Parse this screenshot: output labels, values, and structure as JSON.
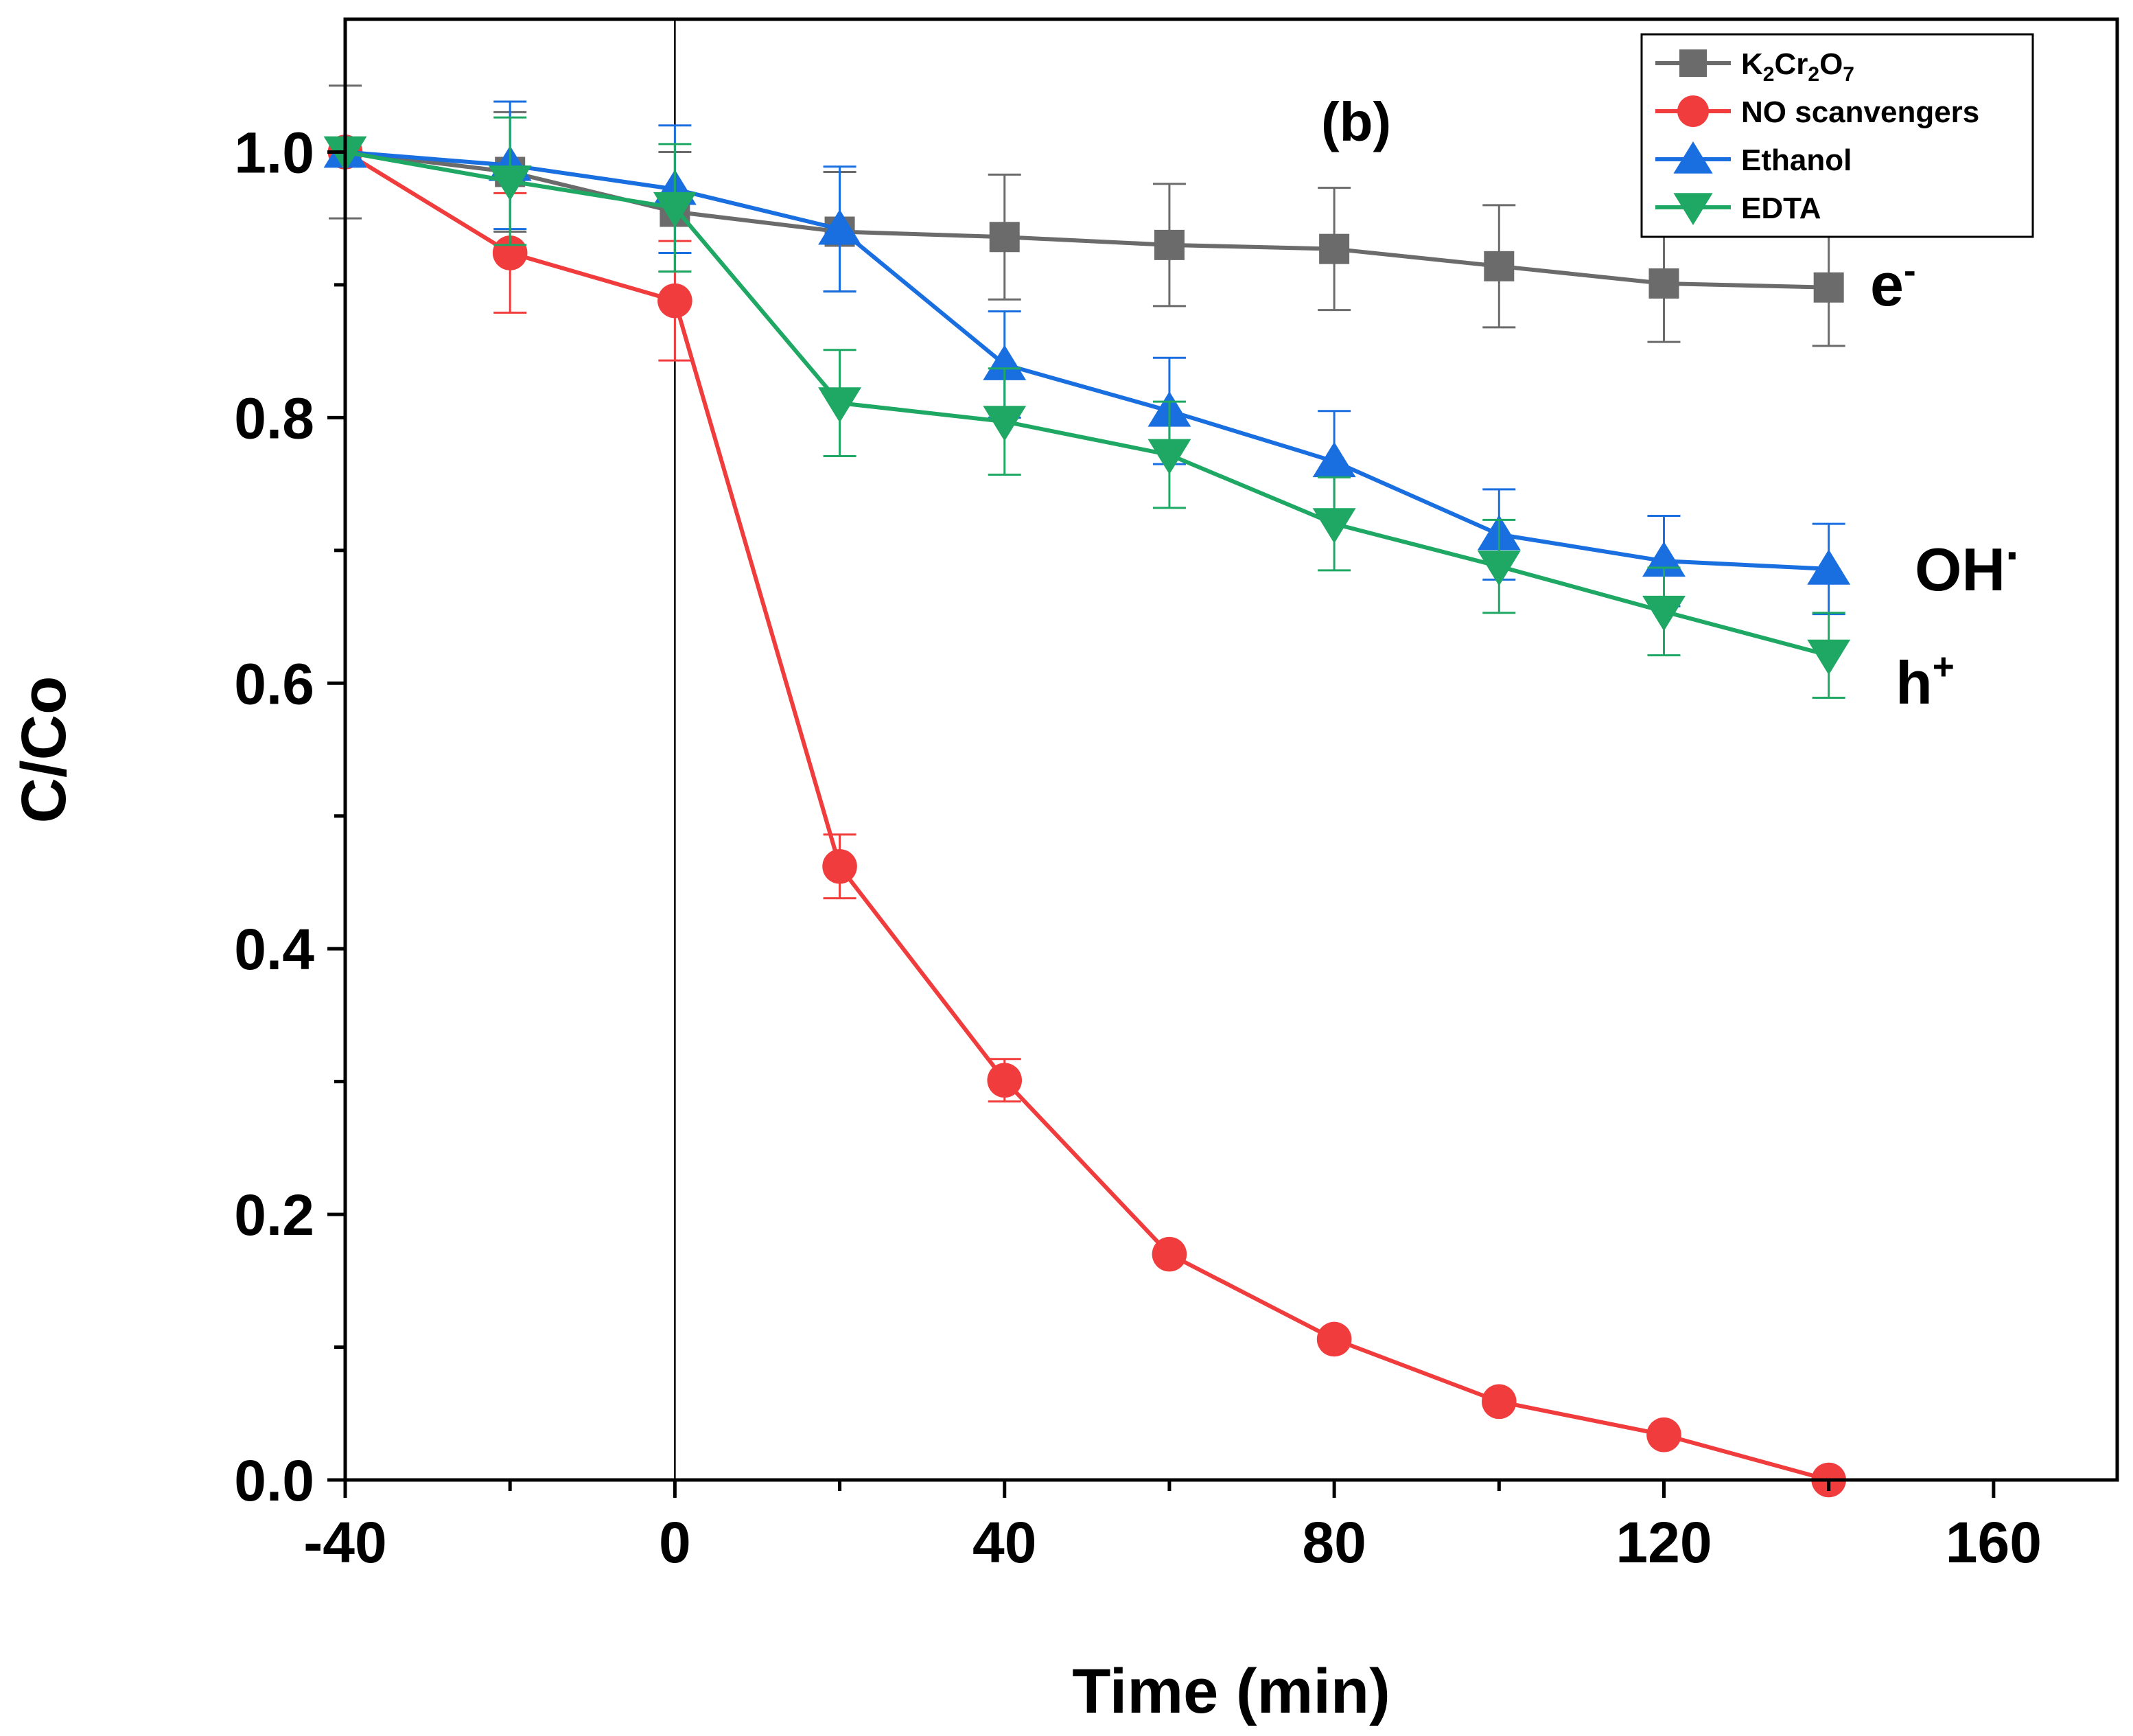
{
  "chart_data": {
    "type": "line",
    "panel_label": "(b)",
    "xlabel": "Time (min)",
    "ylabel": "C/Co",
    "xlim": [
      -40,
      175
    ],
    "ylim": [
      0,
      1.1
    ],
    "xticks": [
      -40,
      0,
      40,
      80,
      120,
      160
    ],
    "xtick_labels": [
      "-40",
      "0",
      "40",
      "80",
      "120",
      "160"
    ],
    "yticks": [
      0.0,
      0.2,
      0.4,
      0.6,
      0.8,
      1.0
    ],
    "ytick_labels": [
      "0.0",
      "0.2",
      "0.4",
      "0.6",
      "0.8",
      "1.0"
    ],
    "vertical_line_x": 0,
    "legend_position": "top-right",
    "series": [
      {
        "name": "K2Cr2O7",
        "legend_label": {
          "parts": [
            "K",
            "2",
            "Cr",
            "2",
            "O",
            "7"
          ],
          "sub": [
            false,
            true,
            false,
            true,
            false,
            true
          ]
        },
        "color": "#6b6b6b",
        "marker": "square",
        "x": [
          -40,
          -20,
          0,
          20,
          40,
          60,
          80,
          100,
          120,
          140
        ],
        "y": [
          1.0,
          0.985,
          0.955,
          0.94,
          0.936,
          0.93,
          0.927,
          0.914,
          0.901,
          0.898
        ],
        "err": [
          0.05,
          0.045,
          0.045,
          0.045,
          0.047,
          0.046,
          0.046,
          0.046,
          0.044,
          0.044
        ]
      },
      {
        "name": "NO scanvengers",
        "color": "#f03c3c",
        "marker": "circle",
        "x": [
          -40,
          -20,
          0,
          20,
          40,
          60,
          80,
          100,
          120,
          140
        ],
        "y": [
          1.0,
          0.924,
          0.888,
          0.462,
          0.301,
          0.17,
          0.106,
          0.059,
          0.034,
          0.0
        ],
        "err": [
          0.0,
          0.045,
          0.045,
          0.024,
          0.016,
          0.0,
          0.0,
          0.0,
          0.0,
          0.0
        ]
      },
      {
        "name": "Ethanol",
        "color": "#1a6fe0",
        "marker": "triangle-up",
        "x": [
          -40,
          -20,
          0,
          20,
          40,
          60,
          80,
          100,
          120,
          140
        ],
        "y": [
          1.0,
          0.99,
          0.972,
          0.942,
          0.84,
          0.805,
          0.767,
          0.712,
          0.692,
          0.686
        ],
        "err": [
          0.0,
          0.048,
          0.048,
          0.047,
          0.04,
          0.04,
          0.038,
          0.034,
          0.034,
          0.034
        ]
      },
      {
        "name": "EDTA",
        "color": "#1ea864",
        "marker": "triangle-down",
        "x": [
          -40,
          -20,
          0,
          20,
          40,
          60,
          80,
          100,
          120,
          140
        ],
        "y": [
          1.0,
          0.978,
          0.958,
          0.811,
          0.797,
          0.772,
          0.72,
          0.688,
          0.654,
          0.621
        ],
        "err": [
          0.0,
          0.048,
          0.048,
          0.04,
          0.04,
          0.04,
          0.035,
          0.035,
          0.033,
          0.032
        ]
      }
    ],
    "annotations": [
      {
        "base": "e",
        "sup": "-",
        "series": "K2Cr2O7"
      },
      {
        "base": "OH",
        "sup": ".",
        "series": "Ethanol"
      },
      {
        "base": "h",
        "sup": "+",
        "series": "EDTA"
      }
    ]
  }
}
